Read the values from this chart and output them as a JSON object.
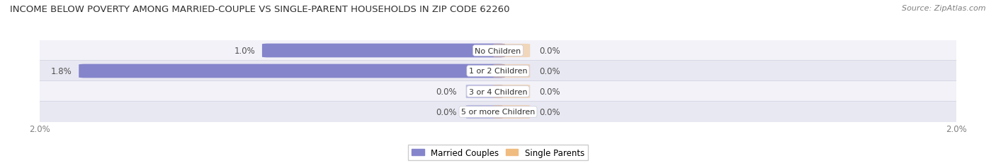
{
  "title": "INCOME BELOW POVERTY AMONG MARRIED-COUPLE VS SINGLE-PARENT HOUSEHOLDS IN ZIP CODE 62260",
  "source": "Source: ZipAtlas.com",
  "categories": [
    "No Children",
    "1 or 2 Children",
    "3 or 4 Children",
    "5 or more Children"
  ],
  "married_values": [
    1.0,
    1.8,
    0.0,
    0.0
  ],
  "single_values": [
    0.0,
    0.0,
    0.0,
    0.0
  ],
  "married_color": "#8585cc",
  "single_color": "#f0bc80",
  "axis_max": 2.0,
  "title_fontsize": 9.5,
  "source_fontsize": 8,
  "label_fontsize": 8.5,
  "category_fontsize": 8,
  "legend_fontsize": 8.5,
  "background_color": "#ffffff",
  "row_colors_light": [
    "#f2f2f8",
    "#e8e8f2"
  ],
  "row_border_color": "#d0d0e0",
  "title_color": "#303030",
  "text_color": "#303030",
  "axis_label_color": "#808080",
  "value_label_inside_color": "#ffffff",
  "value_label_outside_color": "#505050"
}
